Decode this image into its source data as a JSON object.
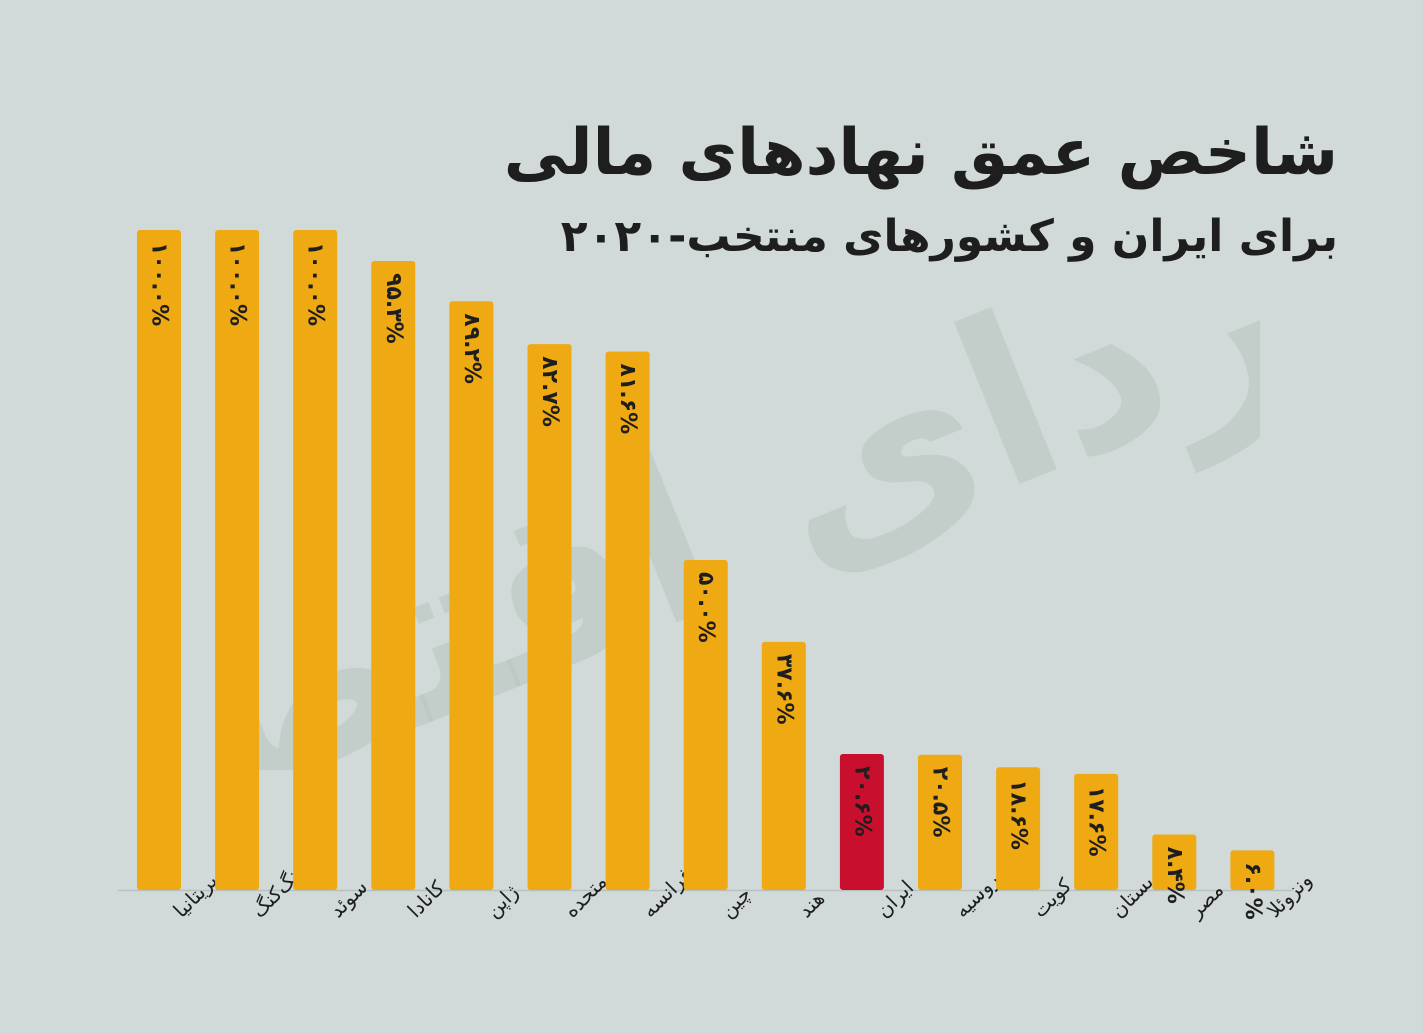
{
  "title": "شاخص عمق نهادهای مالی",
  "subtitle": "برای ایران و کشورهای منتخب-۲۰۲۰",
  "watermark": "فردای اقتصاد",
  "colors": {
    "background": "#d1dad8",
    "bar": "#eea913",
    "highlight": "#c8102e",
    "text": "#1e1e1e"
  },
  "chart_data": {
    "type": "bar",
    "categories": [
      "بریتانیا",
      "هنگ‌کنگ",
      "سوئد",
      "کانادا",
      "ژاپن",
      "ایالات متحده",
      "فرانسه",
      "چین",
      "هند",
      "ایران",
      "روسیه",
      "کویت",
      "عربستان",
      "مصر",
      "ونزوئلا"
    ],
    "values": [
      100.0,
      100.0,
      100.0,
      95.3,
      89.2,
      82.7,
      81.6,
      50.0,
      37.6,
      20.6,
      20.5,
      18.6,
      17.6,
      8.4,
      6.0
    ],
    "value_labels": [
      "۱۰۰.۰%",
      "۱۰۰.۰%",
      "۱۰۰.۰%",
      "۹۵.۳%",
      "۸۹.۲%",
      "۸۲.۷%",
      "۸۱.۶%",
      "۵۰.۰%",
      "۳۷.۶%",
      "۲۰.۶%",
      "۲۰.۵%",
      "۱۸.۶%",
      "۱۷.۶%",
      "۸.۴%",
      "۶.۰%"
    ],
    "highlight_category": "ایران",
    "ylim": [
      0,
      100
    ],
    "xlabel": "",
    "ylabel": "",
    "grid": false,
    "legend": "none"
  }
}
